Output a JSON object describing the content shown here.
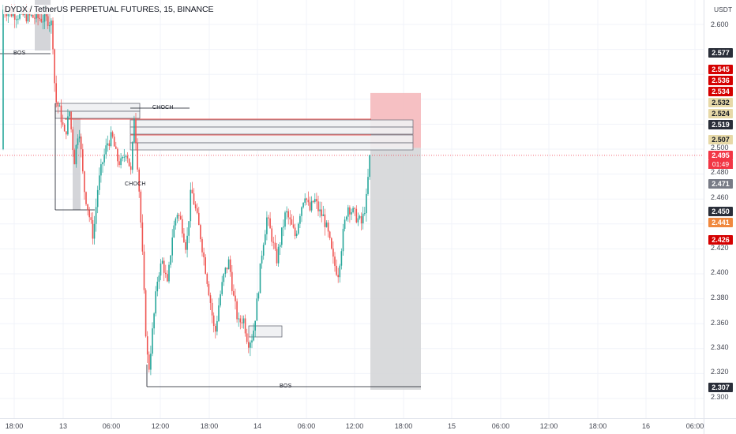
{
  "header": {
    "title": "DYDX / TetherUS PERPETUAL FUTURES, 15, BINANCE",
    "unit": "USDT"
  },
  "colors": {
    "up": "#26a69a",
    "down": "#ef5350",
    "grid": "#f0f3fa",
    "zone_fill": "#f0f1f3",
    "zone_border": "#6a6d78",
    "stop_fill": "#f5b5b9",
    "target_fill": "#d5d6d8"
  },
  "annotations": {
    "bos_top": "BOS",
    "choch_top": "CHOCH",
    "choch_mid": "CHOCH",
    "bos_bottom": "BOS"
  },
  "price_badges": [
    {
      "text": "2.577",
      "color": "#2a2e39"
    },
    {
      "text": "2.545",
      "color": "#d50000"
    },
    {
      "text": "2.536",
      "color": "#d50000"
    },
    {
      "text": "2.534",
      "color": "#d50000"
    },
    {
      "text": "2.532",
      "color": "#e7d9a8",
      "text_color": "#131722"
    },
    {
      "text": "2.524",
      "color": "#e7d9a8",
      "text_color": "#131722"
    },
    {
      "text": "2.519",
      "color": "#2a2e39"
    },
    {
      "text": "2.507",
      "color": "#e7d9a8",
      "text_color": "#131722"
    },
    {
      "text": "2.495",
      "color": "#f23645"
    },
    {
      "text": "2.471",
      "color": "#787b86"
    },
    {
      "text": "2.450",
      "color": "#2a2e39"
    },
    {
      "text": "2.441",
      "color": "#f0883e"
    },
    {
      "text": "2.426",
      "color": "#d50000"
    },
    {
      "text": "2.307",
      "color": "#2a2e39"
    }
  ],
  "countdown": "01:49",
  "chart_data": {
    "type": "candlestick",
    "title": "DYDX / TetherUS PERPETUAL FUTURES, 15, BINANCE",
    "timeframe": "15",
    "exchange": "BINANCE",
    "y_unit": "USDT",
    "ylim": [
      2.295,
      2.612
    ],
    "y_ticks": [
      "2.600",
      "2.500",
      "2.480",
      "2.460",
      "2.420",
      "2.400",
      "2.380",
      "2.360",
      "2.340",
      "2.320",
      "2.300"
    ],
    "x_ticks": [
      "18:00",
      "13",
      "06:00",
      "12:00",
      "18:00",
      "14",
      "06:00",
      "12:00",
      "18:00",
      "15",
      "06:00",
      "12:00",
      "18:00",
      "16",
      "06:00"
    ],
    "last_price": 2.495,
    "grid": true,
    "zones": [
      {
        "kind": "supply",
        "price_range": [
          2.519,
          2.532
        ]
      },
      {
        "kind": "supply",
        "price_range": [
          2.503,
          2.519
        ]
      },
      {
        "kind": "demand",
        "price_range": [
          2.341,
          2.351
        ]
      }
    ],
    "position": {
      "side": "short",
      "entry": 2.501,
      "stop": 2.545,
      "target": 2.307
    },
    "levels": [
      {
        "label": "BOS",
        "price": 2.577
      },
      {
        "label": "CHOCH",
        "price": 2.532
      },
      {
        "label": "BOS",
        "price": 2.307
      }
    ]
  }
}
